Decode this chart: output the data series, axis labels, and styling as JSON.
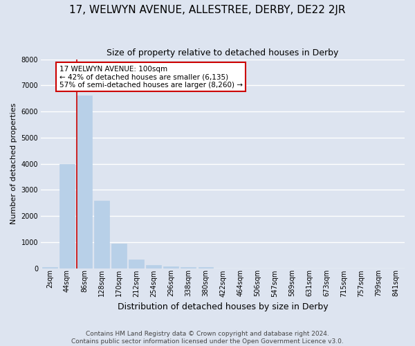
{
  "title": "17, WELWYN AVENUE, ALLESTREE, DERBY, DE22 2JR",
  "subtitle": "Size of property relative to detached houses in Derby",
  "xlabel": "Distribution of detached houses by size in Derby",
  "ylabel": "Number of detached properties",
  "bar_labels": [
    "2sqm",
    "44sqm",
    "86sqm",
    "128sqm",
    "170sqm",
    "212sqm",
    "254sqm",
    "296sqm",
    "338sqm",
    "380sqm",
    "422sqm",
    "464sqm",
    "506sqm",
    "547sqm",
    "589sqm",
    "631sqm",
    "673sqm",
    "715sqm",
    "757sqm",
    "799sqm",
    "841sqm"
  ],
  "bar_values": [
    50,
    4000,
    6600,
    2600,
    950,
    330,
    130,
    65,
    50,
    45,
    0,
    0,
    0,
    0,
    0,
    0,
    0,
    0,
    0,
    0,
    0
  ],
  "bar_color": "#b8d0e8",
  "bar_edge_color": "#b8d0e8",
  "background_color": "#dde4f0",
  "plot_bg_color": "#dde4f0",
  "grid_color": "#ffffff",
  "vline_x_index": 2,
  "vline_color": "#cc0000",
  "annotation_line1": "17 WELWYN AVENUE: 100sqm",
  "annotation_line2": "← 42% of detached houses are smaller (6,135)",
  "annotation_line3": "57% of semi-detached houses are larger (8,260) →",
  "annotation_box_color": "#ffffff",
  "annotation_box_edge_color": "#cc0000",
  "ylim": [
    0,
    8000
  ],
  "yticks": [
    0,
    1000,
    2000,
    3000,
    4000,
    5000,
    6000,
    7000,
    8000
  ],
  "footer_line1": "Contains HM Land Registry data © Crown copyright and database right 2024.",
  "footer_line2": "Contains public sector information licensed under the Open Government Licence v3.0.",
  "title_fontsize": 11,
  "subtitle_fontsize": 9,
  "ylabel_fontsize": 8,
  "xlabel_fontsize": 9,
  "tick_fontsize": 7,
  "footer_fontsize": 6.5
}
